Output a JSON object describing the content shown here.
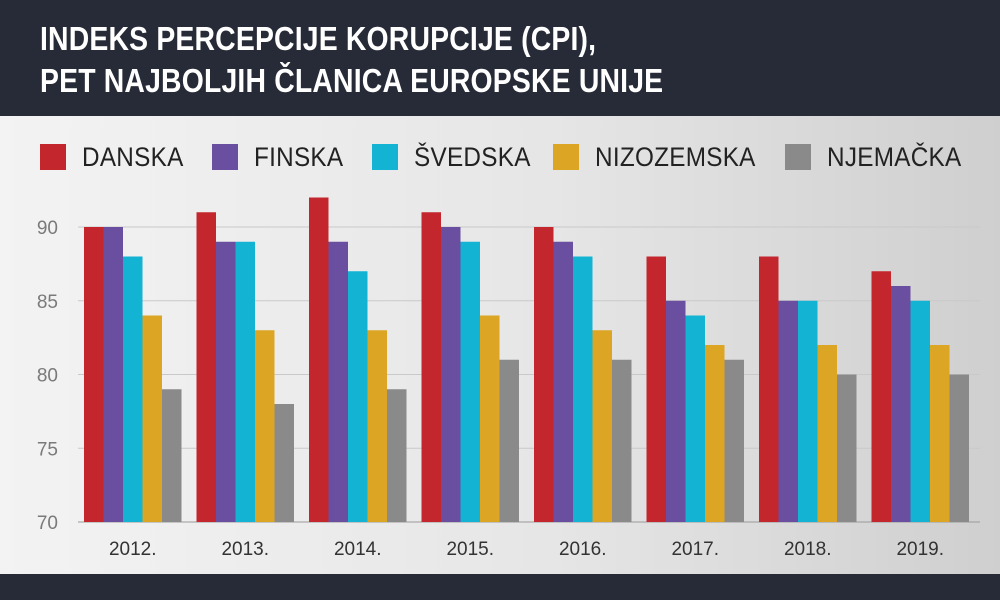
{
  "header": {
    "title_line1": "INDEKS PERCEPCIJE KORUPCIJE (CPI),",
    "title_line2": "PET NAJBOLJIH ČLANICA EUROPSKE UNIJE"
  },
  "colors": {
    "header_bg": "#262b37",
    "DANSKA": "#c4262e",
    "FINSKA": "#6a4fa0",
    "ŠVEDSKA": "#13b3d4",
    "NIZOZEMSKA": "#dda524",
    "NJEMAČKA": "#8a8a8a"
  },
  "chart_data": {
    "type": "bar",
    "title": "INDEKS PERCEPCIJE KORUPCIJE (CPI), PET NAJBOLJIH ČLANICA EUROPSKE UNIJE",
    "categories": [
      "2012.",
      "2013.",
      "2014.",
      "2015.",
      "2016.",
      "2017.",
      "2018.",
      "2019."
    ],
    "series": [
      {
        "name": "DANSKA",
        "values": [
          90,
          91,
          92,
          91,
          90,
          88,
          88,
          87
        ]
      },
      {
        "name": "FINSKA",
        "values": [
          90,
          89,
          89,
          90,
          89,
          85,
          85,
          86
        ]
      },
      {
        "name": "ŠVEDSKA",
        "values": [
          88,
          89,
          87,
          89,
          88,
          84,
          85,
          85
        ]
      },
      {
        "name": "NIZOZEMSKA",
        "values": [
          84,
          83,
          83,
          84,
          83,
          82,
          82,
          82
        ]
      },
      {
        "name": "NJEMAČKA",
        "values": [
          79,
          78,
          79,
          81,
          81,
          81,
          80,
          80
        ]
      }
    ],
    "yticks": [
      70,
      75,
      80,
      85,
      90
    ],
    "ylim": [
      70,
      92
    ],
    "xlabel": "",
    "ylabel": "",
    "grid": true,
    "legend_position": "top"
  }
}
